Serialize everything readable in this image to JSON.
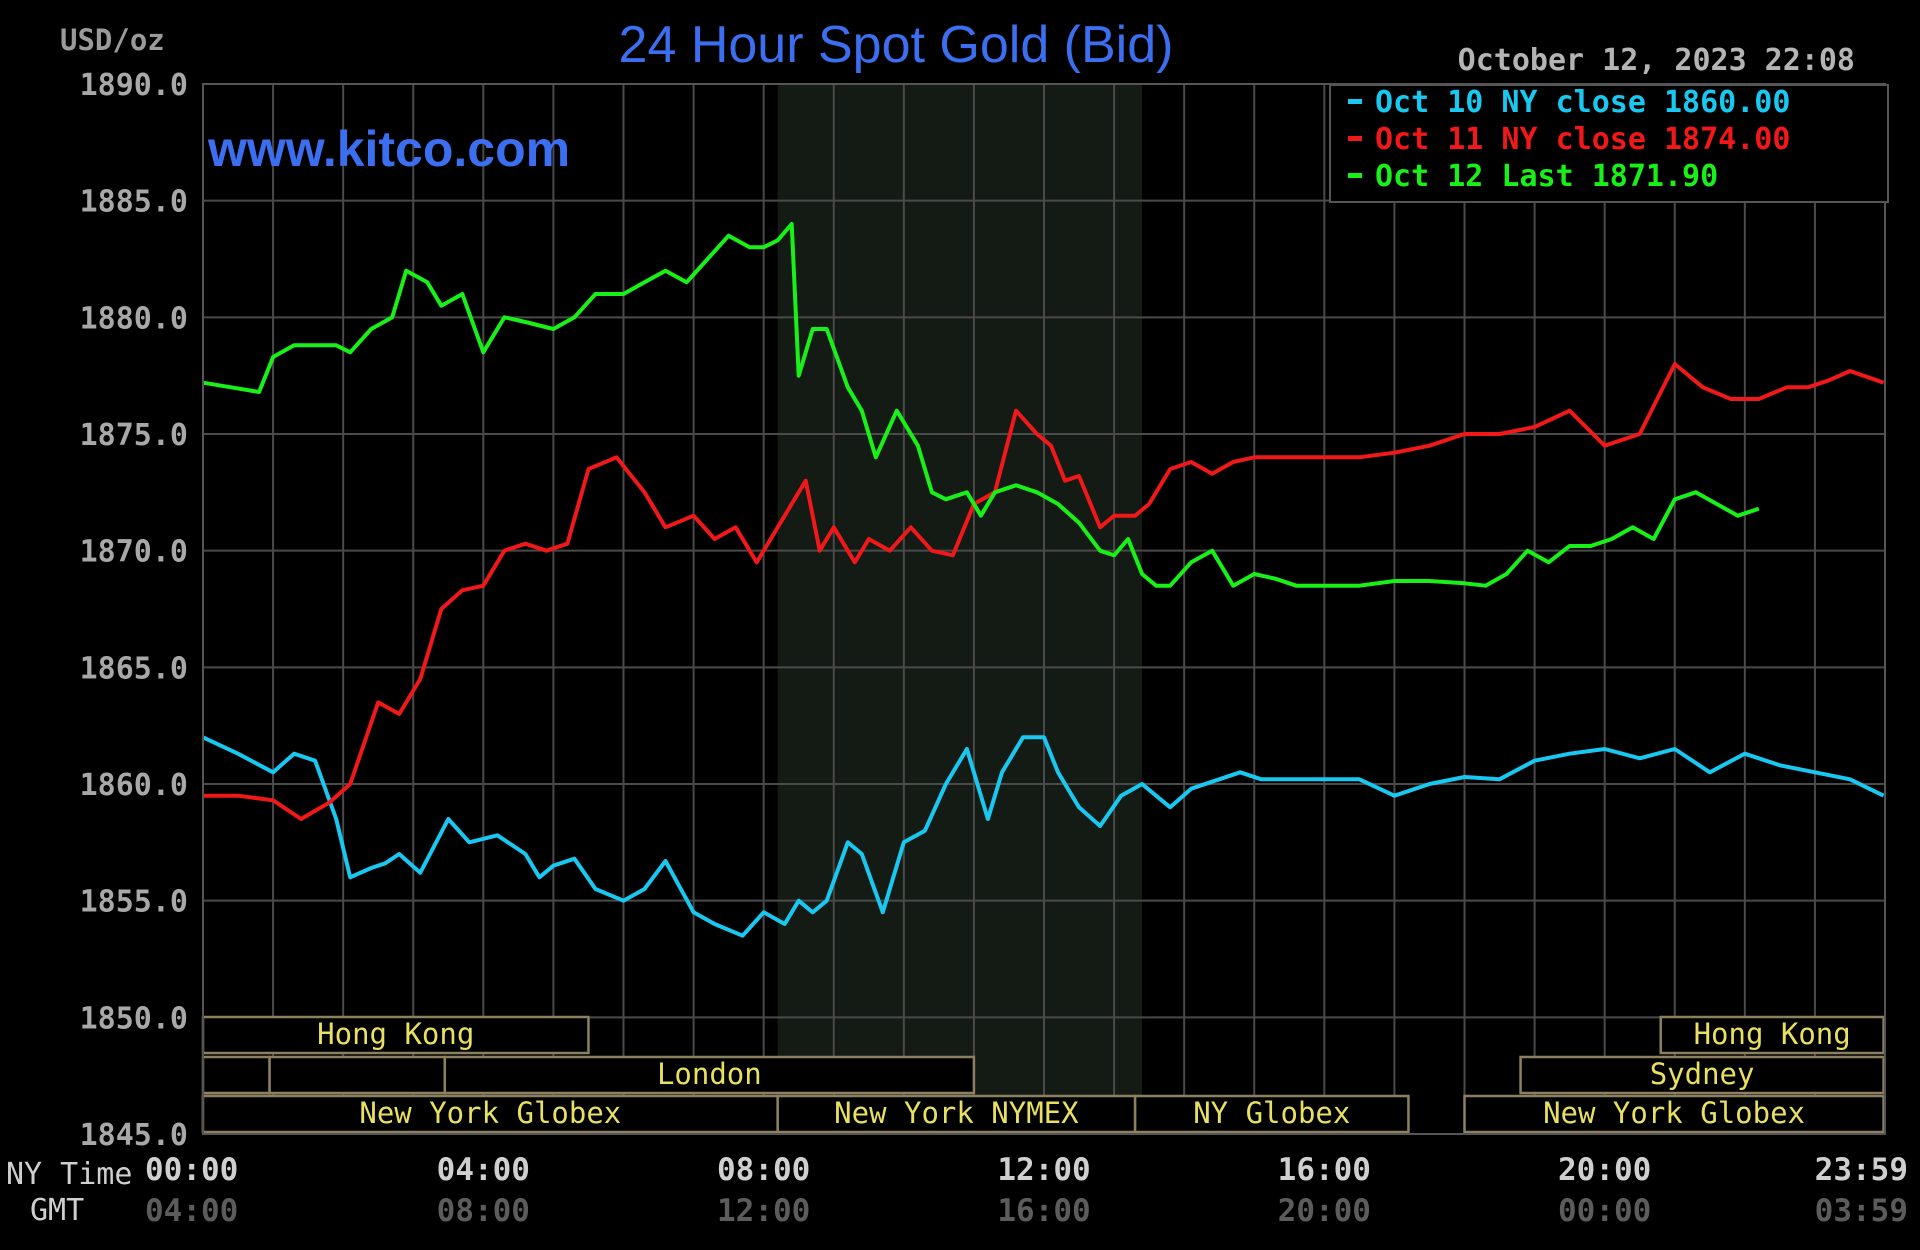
{
  "chart_data": {
    "type": "line",
    "title": "24 Hour Spot Gold (Bid)",
    "ylabel": "USD/oz",
    "watermark": "www.kitco.com",
    "timestamp": "October 12, 2023 22:08",
    "ylim": [
      1845,
      1890
    ],
    "y_ticks": [
      "1890.0",
      "1885.0",
      "1880.0",
      "1875.0",
      "1870.0",
      "1865.0",
      "1860.0",
      "1855.0",
      "1850.0",
      "1845.0"
    ],
    "y_tick_values": [
      1890,
      1885,
      1880,
      1875,
      1870,
      1865,
      1860,
      1855,
      1850,
      1845
    ],
    "xlim": [
      0,
      24
    ],
    "x_ticks_ny": [
      "00:00",
      "04:00",
      "08:00",
      "12:00",
      "16:00",
      "20:00",
      "23:59"
    ],
    "x_ticks_gmt": [
      "04:00",
      "08:00",
      "12:00",
      "16:00",
      "20:00",
      "00:00",
      "03:59"
    ],
    "x_tick_hours": [
      0,
      4,
      8,
      12,
      16,
      20,
      23.98
    ],
    "x_row_label_ny": "NY Time",
    "x_row_label_gmt": "GMT",
    "grid": true,
    "legend_position": "top-right",
    "series": [
      {
        "name": "Oct 10 NY close 1860.00",
        "color": "#19c8f0",
        "x": [
          0,
          0.5,
          1,
          1.3,
          1.6,
          1.9,
          2.1,
          2.4,
          2.6,
          2.8,
          3.1,
          3.5,
          3.8,
          4.2,
          4.6,
          4.8,
          5.0,
          5.3,
          5.6,
          6.0,
          6.3,
          6.6,
          7.0,
          7.3,
          7.7,
          8.0,
          8.3,
          8.5,
          8.7,
          8.9,
          9.2,
          9.4,
          9.7,
          10.0,
          10.3,
          10.6,
          10.9,
          11.2,
          11.4,
          11.7,
          12.0,
          12.2,
          12.5,
          12.8,
          13.1,
          13.4,
          13.6,
          13.8,
          14.1,
          14.5,
          14.8,
          15.1,
          15.5,
          16.0,
          16.5,
          17.0,
          17.5,
          18.0,
          18.5,
          19.0,
          19.5,
          20.0,
          20.5,
          21.0,
          21.5,
          22.0,
          22.5,
          23.0,
          23.5,
          23.98
        ],
        "values": [
          1862,
          1861.3,
          1860.5,
          1861.3,
          1861,
          1858.5,
          1856,
          1856.4,
          1856.6,
          1857,
          1856.2,
          1858.5,
          1857.5,
          1857.8,
          1857,
          1856,
          1856.5,
          1856.8,
          1855.5,
          1855,
          1855.5,
          1856.7,
          1854.5,
          1854,
          1853.5,
          1854.5,
          1854,
          1855,
          1854.5,
          1855,
          1857.5,
          1857,
          1854.5,
          1857.5,
          1858,
          1860,
          1861.5,
          1858.5,
          1860.5,
          1862,
          1862,
          1860.5,
          1859,
          1858.2,
          1859.5,
          1860,
          1859.5,
          1859,
          1859.8,
          1860.2,
          1860.5,
          1860.2,
          1860.2,
          1860.2,
          1860.2,
          1859.5,
          1860,
          1860.3,
          1860.2,
          1861,
          1861.3,
          1861.5,
          1861.1,
          1861.5,
          1860.5,
          1861.3,
          1860.8,
          1860.5,
          1860.2,
          1859.5
        ]
      },
      {
        "name": "Oct 11 NY close 1874.00",
        "color": "#f01818",
        "x": [
          0,
          0.5,
          1.0,
          1.4,
          1.8,
          2.1,
          2.5,
          2.8,
          3.1,
          3.4,
          3.7,
          4.0,
          4.3,
          4.6,
          4.9,
          5.2,
          5.5,
          5.9,
          6.3,
          6.6,
          7.0,
          7.3,
          7.6,
          7.9,
          8.3,
          8.6,
          8.8,
          9.0,
          9.3,
          9.5,
          9.8,
          10.1,
          10.4,
          10.7,
          11.0,
          11.3,
          11.6,
          11.9,
          12.1,
          12.3,
          12.5,
          12.8,
          13.0,
          13.3,
          13.5,
          13.8,
          14.1,
          14.4,
          14.7,
          15.0,
          15.3,
          15.6,
          16.0,
          16.5,
          17.0,
          17.5,
          18.0,
          18.5,
          19.0,
          19.5,
          20.0,
          20.5,
          21.0,
          21.4,
          21.8,
          22.2,
          22.6,
          22.9,
          23.2,
          23.5,
          23.98
        ],
        "values": [
          1859.5,
          1859.5,
          1859.3,
          1858.5,
          1859.2,
          1860,
          1863.5,
          1863,
          1864.5,
          1867.5,
          1868.3,
          1868.5,
          1870,
          1870.3,
          1870,
          1870.3,
          1873.5,
          1874,
          1872.5,
          1871,
          1871.5,
          1870.5,
          1871,
          1869.5,
          1871.5,
          1873,
          1870,
          1871,
          1869.5,
          1870.5,
          1870,
          1871,
          1870,
          1869.8,
          1872,
          1872.5,
          1876,
          1875,
          1874.5,
          1873,
          1873.2,
          1871,
          1871.5,
          1871.5,
          1872,
          1873.5,
          1873.8,
          1873.3,
          1873.8,
          1874,
          1874,
          1874,
          1874,
          1874,
          1874.2,
          1874.5,
          1875,
          1875,
          1875.3,
          1876,
          1874.5,
          1875,
          1878,
          1877,
          1876.5,
          1876.5,
          1877,
          1877,
          1877.3,
          1877.7,
          1877.2
        ]
      },
      {
        "name": "Oct 12 Last 1871.90",
        "color": "#18f018",
        "x": [
          0,
          0.4,
          0.8,
          1.0,
          1.3,
          1.6,
          1.9,
          2.1,
          2.4,
          2.7,
          2.9,
          3.2,
          3.4,
          3.7,
          4.0,
          4.3,
          4.6,
          5.0,
          5.3,
          5.6,
          6.0,
          6.3,
          6.6,
          6.9,
          7.2,
          7.5,
          7.8,
          8.0,
          8.2,
          8.4,
          8.5,
          8.7,
          8.9,
          9.2,
          9.4,
          9.6,
          9.9,
          10.2,
          10.4,
          10.6,
          10.9,
          11.1,
          11.3,
          11.6,
          11.9,
          12.2,
          12.5,
          12.8,
          13.0,
          13.2,
          13.4,
          13.6,
          13.8,
          14.1,
          14.4,
          14.7,
          15.0,
          15.3,
          15.6,
          16.0,
          16.5,
          17.0,
          17.5,
          18.0,
          18.3,
          18.6,
          18.9,
          19.2,
          19.5,
          19.8,
          20.1,
          20.4,
          20.7,
          21.0,
          21.3,
          21.6,
          21.9,
          22.2
        ],
        "values": [
          1877.2,
          1877,
          1876.8,
          1878.3,
          1878.8,
          1878.8,
          1878.8,
          1878.5,
          1879.5,
          1880,
          1882,
          1881.5,
          1880.5,
          1881,
          1878.5,
          1880,
          1879.8,
          1879.5,
          1880,
          1881,
          1881,
          1881.5,
          1882,
          1881.5,
          1882.5,
          1883.5,
          1883,
          1883,
          1883.3,
          1884,
          1877.5,
          1879.5,
          1879.5,
          1877,
          1876,
          1874,
          1876,
          1874.5,
          1872.5,
          1872.2,
          1872.5,
          1871.5,
          1872.5,
          1872.8,
          1872.5,
          1872,
          1871.2,
          1870,
          1869.8,
          1870.5,
          1869,
          1868.5,
          1868.5,
          1869.5,
          1870,
          1868.5,
          1869,
          1868.8,
          1868.5,
          1868.5,
          1868.5,
          1868.7,
          1868.7,
          1868.6,
          1868.5,
          1869,
          1870,
          1869.5,
          1870.2,
          1870.2,
          1870.5,
          1871,
          1870.5,
          1872.2,
          1872.5,
          1872,
          1871.5,
          1871.8
        ]
      }
    ],
    "shaded_region_hours": [
      8.2,
      13.4
    ],
    "sessions": [
      {
        "label": "Hong Kong",
        "row": 1,
        "start": 0,
        "end": 5.5,
        "show_label": true
      },
      {
        "label": "Hong Kong",
        "row": 1,
        "start": 20.8,
        "end": 23.98,
        "show_label": true
      },
      {
        "label": "",
        "row": 2,
        "start": 0,
        "end": 0.95,
        "show_label": false
      },
      {
        "label": "",
        "row": 2,
        "start": 0.95,
        "end": 3.45,
        "show_label": false
      },
      {
        "label": "London",
        "row": 2,
        "start": 3.45,
        "end": 11.0,
        "show_label": true
      },
      {
        "label": "Sydney",
        "row": 2,
        "start": 18.8,
        "end": 23.98,
        "show_label": true
      },
      {
        "label": "",
        "row": 3,
        "start": 0,
        "end": 6.0,
        "show_label": false
      },
      {
        "label": "New York Globex",
        "row": 3,
        "start": 0,
        "end": 8.2,
        "show_label": true
      },
      {
        "label": "New York NYMEX",
        "row": 3,
        "start": 8.2,
        "end": 13.3,
        "show_label": true
      },
      {
        "label": "NY Globex",
        "row": 3,
        "start": 13.3,
        "end": 17.2,
        "show_label": true
      },
      {
        "label": "New York Globex",
        "row": 3,
        "start": 18.0,
        "end": 23.98,
        "show_label": true
      }
    ]
  }
}
